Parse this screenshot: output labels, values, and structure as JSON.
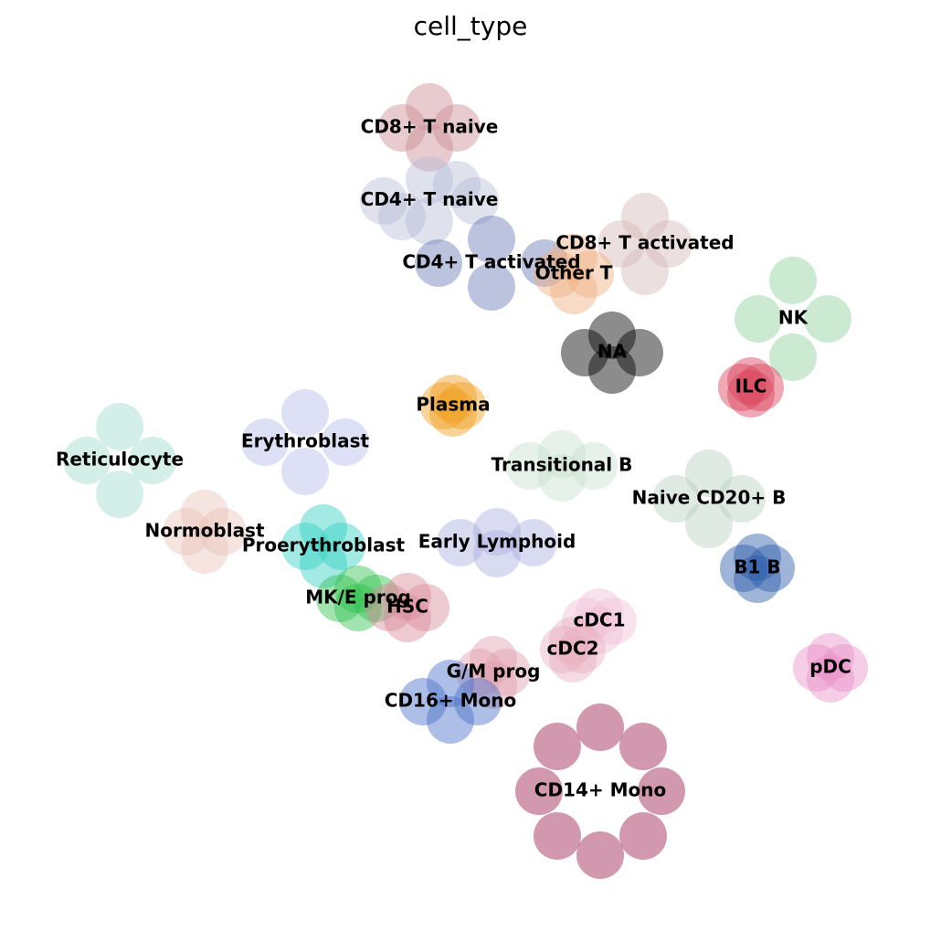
{
  "chart_data": {
    "type": "scatter",
    "title": "cell_type",
    "xlim": [
      0,
      103
    ],
    "ylim": [
      0,
      104.2
    ],
    "series": [
      {
        "name": "CD8+ T naive",
        "color": "#c98b93",
        "x": [
          44,
          47,
          50,
          47
        ],
        "values": [
          90.2,
          92.5,
          90.2,
          88
        ]
      },
      {
        "name": "CD4+ T naive",
        "color": "#b8bcd8",
        "x": [
          42,
          47,
          52,
          47,
          44,
          50
        ],
        "values": [
          82.2,
          84.5,
          82.2,
          80,
          80.5,
          84
        ]
      },
      {
        "name": "CD4+ T activated",
        "color": "#6b7ab5",
        "x": [
          48,
          53.8,
          59.6,
          53.8
        ],
        "values": [
          75.4,
          78,
          75.4,
          72.8
        ]
      },
      {
        "name": "CD8+ T activated",
        "color": "#d4b8b8",
        "x": [
          68,
          70.6,
          73.2,
          70.6
        ],
        "values": [
          77.5,
          80.5,
          77.5,
          74.5
        ]
      },
      {
        "name": "Other T",
        "color": "#f0b080",
        "x": [
          61,
          62.8,
          64.6,
          62.8
        ],
        "values": [
          74.2,
          76,
          74.2,
          72.4
        ]
      },
      {
        "name": "NA",
        "color": "#000000",
        "x": [
          64,
          67,
          70,
          67
        ],
        "values": [
          65.6,
          67.5,
          65.6,
          63.7
        ]
      },
      {
        "name": "NK",
        "color": "#8fd19b",
        "x": [
          83,
          86.8,
          90.6,
          86.8
        ],
        "values": [
          69.3,
          73.5,
          69.3,
          65.1
        ]
      },
      {
        "name": "ILC",
        "color": "#d9405a",
        "x": [
          81.2,
          82.2,
          83.2,
          82.2
        ],
        "values": [
          61.8,
          62.5,
          61.8,
          61.1
        ]
      },
      {
        "name": "Plasma",
        "color": "#f0a020",
        "x": [
          48.6,
          49.6,
          50.6,
          49.6
        ],
        "values": [
          59.8,
          60.6,
          59.8,
          59
        ]
      },
      {
        "name": "Erythroblast",
        "color": "#b5bde8",
        "x": [
          29,
          33.4,
          37.8,
          33.4
        ],
        "values": [
          55.8,
          59,
          55.8,
          52.6
        ]
      },
      {
        "name": "Reticulocyte",
        "color": "#9fdccd",
        "x": [
          9.5,
          13.1,
          16.7,
          13.1
        ],
        "values": [
          53.8,
          57.5,
          53.8,
          50.1
        ]
      },
      {
        "name": "Normoblast",
        "color": "#e8c4b8",
        "x": [
          20.4,
          22.4,
          24.4,
          22.4
        ],
        "values": [
          46,
          48,
          46,
          44
        ]
      },
      {
        "name": "Proerythroblast",
        "color": "#30d0c0",
        "x": [
          33.4,
          35.4,
          37.4,
          35.4
        ],
        "values": [
          44.4,
          46.4,
          44.4,
          42.4
        ]
      },
      {
        "name": "MK/E prog",
        "color": "#30c050",
        "x": [
          37.2,
          39.2,
          41.2,
          39.2
        ],
        "values": [
          38.7,
          39.7,
          38.7,
          37.7
        ]
      },
      {
        "name": "HSC",
        "color": "#d98a9a",
        "x": [
          42.6,
          44.6,
          46.6,
          44.6
        ],
        "values": [
          37.7,
          38.9,
          37.7,
          36.5
        ]
      },
      {
        "name": "Transitional B",
        "color": "#c8e0d0",
        "x": [
          58,
          61.5,
          65,
          61.5
        ],
        "values": [
          53.2,
          54.5,
          53.2,
          51.9
        ]
      },
      {
        "name": "Naive CD20+ B",
        "color": "#b8d0c0",
        "x": [
          74,
          77.6,
          81.2,
          77.6
        ],
        "values": [
          49.6,
          52.4,
          49.6,
          46.8
        ]
      },
      {
        "name": "B1 B",
        "color": "#2a5aa8",
        "x": [
          81.4,
          82.9,
          84.4,
          82.9
        ],
        "values": [
          42,
          43.2,
          42,
          40.8
        ]
      },
      {
        "name": "Early Lymphoid",
        "color": "#aab0e0",
        "x": [
          50.4,
          54.4,
          58.4,
          54.4
        ],
        "values": [
          44.8,
          46,
          44.8,
          43.6
        ]
      },
      {
        "name": "cDC1",
        "color": "#f0c0d8",
        "x": [
          64.1,
          65.6,
          67.1,
          65.6
        ],
        "values": [
          36.2,
          37.2,
          36.2,
          35.2
        ]
      },
      {
        "name": "cDC2",
        "color": "#e8b0c0",
        "x": [
          61.7,
          62.7,
          63.7,
          62.7
        ],
        "values": [
          33.1,
          34.1,
          33.1,
          32.1
        ]
      },
      {
        "name": "G/M prog",
        "color": "#e0a0b0",
        "x": [
          52.5,
          54,
          55.5,
          54
        ],
        "values": [
          30.6,
          32,
          30.6,
          29.2
        ]
      },
      {
        "name": "CD16+ Mono",
        "color": "#4a70c8",
        "x": [
          46.3,
          49.3,
          52.3,
          49.3
        ],
        "values": [
          27.4,
          29.4,
          27.4,
          25.4
        ]
      },
      {
        "name": "CD14+ Mono",
        "color": "#9b1a4a",
        "x": [
          59,
          65.7,
          72.4,
          65.7,
          61,
          70.4,
          61,
          70.4
        ],
        "values": [
          17.6,
          24.6,
          17.6,
          10.6,
          22.5,
          22.5,
          12.7,
          12.7
        ]
      },
      {
        "name": "pDC",
        "color": "#e890c8",
        "x": [
          89.4,
          90.9,
          92.4,
          90.9
        ],
        "values": [
          31.1,
          32.3,
          31.1,
          29.9
        ]
      }
    ]
  }
}
